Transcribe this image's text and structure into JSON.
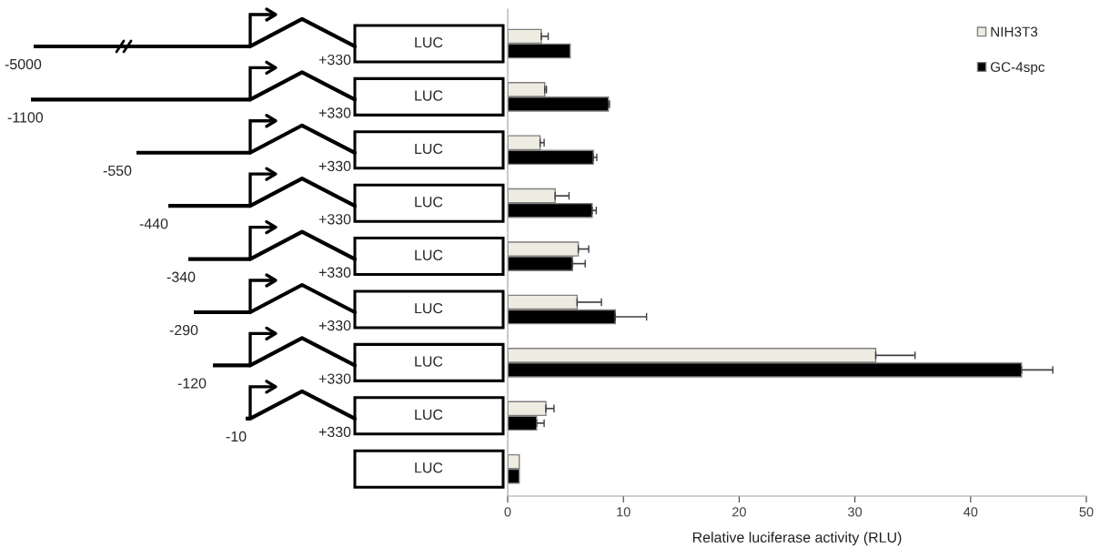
{
  "chart_data": {
    "type": "bar",
    "orientation": "horizontal",
    "xlabel": "Relative luciferase activity (RLU)",
    "categories": [
      null,
      null,
      null,
      null,
      null,
      null,
      null,
      null,
      null
    ],
    "series": [
      {
        "name": "NIH3T3",
        "color": "#eeece1",
        "values": [
          2.9,
          3.2,
          2.8,
          4.1,
          6.1,
          6.0,
          31.8,
          3.3,
          1.0
        ],
        "errors": [
          [
            2.9,
            3.5
          ],
          [
            3.2,
            3.35
          ],
          [
            2.8,
            3.15
          ],
          [
            4.1,
            5.3
          ],
          [
            6.1,
            7.0
          ],
          [
            6.0,
            8.1
          ],
          [
            31.8,
            35.2
          ],
          [
            3.3,
            4.0
          ],
          null
        ]
      },
      {
        "name": "GC-4spc",
        "color": "#000000",
        "values": [
          5.4,
          8.7,
          7.4,
          7.3,
          5.6,
          9.3,
          44.4,
          2.5,
          1.0
        ],
        "errors": [
          null,
          [
            8.7,
            8.8
          ],
          [
            7.4,
            7.7
          ],
          [
            7.3,
            7.65
          ],
          [
            5.6,
            6.7
          ],
          [
            9.3,
            12.0
          ],
          [
            44.4,
            47.1
          ],
          [
            2.5,
            3.15
          ],
          null
        ]
      }
    ],
    "xlim": [
      0,
      50
    ],
    "xticks": [
      0,
      10,
      20,
      30,
      40,
      50
    ],
    "grid": false,
    "legend": "top right",
    "annotations": [
      "-5000",
      "LUC",
      "+330",
      "-1100",
      "LUC",
      "+330",
      "-550",
      "LUC",
      "+330",
      "-440",
      "LUC",
      "+330",
      "-340",
      "LUC",
      "+330",
      "-290",
      "LUC",
      "+330",
      "-120",
      "LUC",
      "+330",
      "-10",
      "LUC",
      "+330",
      "LUC"
    ]
  }
}
